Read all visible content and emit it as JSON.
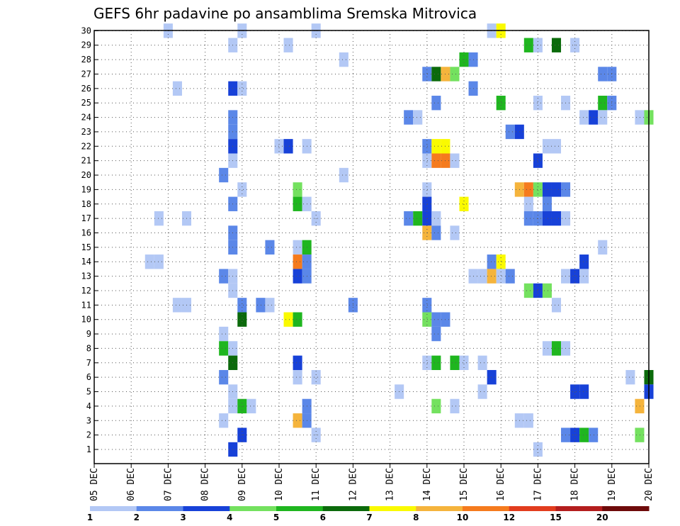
{
  "chart_data": {
    "type": "heatmap",
    "title": "GEFS 6hr padavine po ansamblima Sremska Mitrovica",
    "x_ticks": [
      "05 DEC",
      "06 DEC",
      "07 DEC",
      "08 DEC",
      "09 DEC",
      "10 DEC",
      "11 DEC",
      "12 DEC",
      "13 DEC",
      "14 DEC",
      "15 DEC",
      "16 DEC",
      "17 DEC",
      "18 DEC",
      "19 DEC",
      "20 DEC"
    ],
    "y_ticks": [
      "1",
      "2",
      "3",
      "4",
      "5",
      "6",
      "7",
      "8",
      "9",
      "10",
      "11",
      "12",
      "13",
      "14",
      "15",
      "16",
      "17",
      "18",
      "19",
      "20",
      "21",
      "22",
      "23",
      "24",
      "25",
      "26",
      "27",
      "28",
      "29",
      "30"
    ],
    "x_unit": "6h steps from 05 DEC 00Z",
    "grid": true,
    "legend": {
      "labels": [
        "1",
        "2",
        "3",
        "4",
        "5",
        "6",
        "7",
        "8",
        "10",
        "12",
        "15",
        "20"
      ],
      "colors": [
        "#b3c8f5",
        "#5b87e8",
        "#1741d8",
        "#74e15f",
        "#1fb61f",
        "#0b6a0b",
        "#fafa00",
        "#f5b43c",
        "#f57b1e",
        "#e23c1e",
        "#b41e1e",
        "#6e0a0a"
      ]
    },
    "cells": [
      {
        "m": 30,
        "t": 24,
        "c": 1
      },
      {
        "m": 30,
        "t": 16,
        "c": 1
      },
      {
        "m": 30,
        "t": 8,
        "c": 1
      },
      {
        "m": 30,
        "t": 43,
        "c": 1
      },
      {
        "m": 30,
        "t": 44,
        "c": 7
      },
      {
        "m": 29,
        "t": 15,
        "c": 1
      },
      {
        "m": 29,
        "t": 21,
        "c": 1
      },
      {
        "m": 29,
        "t": 47,
        "c": 5
      },
      {
        "m": 29,
        "t": 48,
        "c": 1
      },
      {
        "m": 29,
        "t": 50,
        "c": 6
      },
      {
        "m": 29,
        "t": 52,
        "c": 1
      },
      {
        "m": 28,
        "t": 27,
        "c": 1
      },
      {
        "m": 28,
        "t": 40,
        "c": 5
      },
      {
        "m": 28,
        "t": 41,
        "c": 2
      },
      {
        "m": 27,
        "t": 36,
        "c": 2
      },
      {
        "m": 27,
        "t": 37,
        "c": 6
      },
      {
        "m": 27,
        "t": 38,
        "c": 8
      },
      {
        "m": 27,
        "t": 39,
        "c": 4
      },
      {
        "m": 27,
        "t": 55,
        "c": 2
      },
      {
        "m": 27,
        "t": 56,
        "c": 2
      },
      {
        "m": 26,
        "t": 9,
        "c": 1
      },
      {
        "m": 26,
        "t": 15,
        "c": 3
      },
      {
        "m": 26,
        "t": 16,
        "c": 1
      },
      {
        "m": 26,
        "t": 41,
        "c": 2
      },
      {
        "m": 25,
        "t": 37,
        "c": 2
      },
      {
        "m": 25,
        "t": 44,
        "c": 5
      },
      {
        "m": 25,
        "t": 48,
        "c": 1
      },
      {
        "m": 25,
        "t": 51,
        "c": 1
      },
      {
        "m": 25,
        "t": 55,
        "c": 5
      },
      {
        "m": 25,
        "t": 56,
        "c": 2
      },
      {
        "m": 24,
        "t": 15,
        "c": 2
      },
      {
        "m": 24,
        "t": 34,
        "c": 2
      },
      {
        "m": 24,
        "t": 35,
        "c": 1
      },
      {
        "m": 24,
        "t": 53,
        "c": 1
      },
      {
        "m": 24,
        "t": 54,
        "c": 3
      },
      {
        "m": 24,
        "t": 55,
        "c": 1
      },
      {
        "m": 24,
        "t": 59,
        "c": 1
      },
      {
        "m": 24,
        "t": 60,
        "c": 4
      },
      {
        "m": 23,
        "t": 15,
        "c": 2
      },
      {
        "m": 23,
        "t": 45,
        "c": 2
      },
      {
        "m": 23,
        "t": 46,
        "c": 3
      },
      {
        "m": 22,
        "t": 15,
        "c": 3
      },
      {
        "m": 22,
        "t": 20,
        "c": 1
      },
      {
        "m": 22,
        "t": 21,
        "c": 3
      },
      {
        "m": 22,
        "t": 23,
        "c": 1
      },
      {
        "m": 22,
        "t": 36,
        "c": 2
      },
      {
        "m": 22,
        "t": 37,
        "c": 7
      },
      {
        "m": 22,
        "t": 38,
        "c": 7
      },
      {
        "m": 22,
        "t": 49,
        "c": 1
      },
      {
        "m": 22,
        "t": 50,
        "c": 1
      },
      {
        "m": 21,
        "t": 15,
        "c": 1
      },
      {
        "m": 21,
        "t": 36,
        "c": 1
      },
      {
        "m": 21,
        "t": 37,
        "c": 9
      },
      {
        "m": 21,
        "t": 38,
        "c": 9
      },
      {
        "m": 21,
        "t": 39,
        "c": 1
      },
      {
        "m": 21,
        "t": 48,
        "c": 3
      },
      {
        "m": 20,
        "t": 14,
        "c": 2
      },
      {
        "m": 20,
        "t": 27,
        "c": 1
      },
      {
        "m": 19,
        "t": 16,
        "c": 1
      },
      {
        "m": 19,
        "t": 22,
        "c": 4
      },
      {
        "m": 19,
        "t": 36,
        "c": 1
      },
      {
        "m": 19,
        "t": 46,
        "c": 8
      },
      {
        "m": 19,
        "t": 47,
        "c": 9
      },
      {
        "m": 19,
        "t": 48,
        "c": 4
      },
      {
        "m": 19,
        "t": 49,
        "c": 3
      },
      {
        "m": 19,
        "t": 50,
        "c": 3
      },
      {
        "m": 19,
        "t": 51,
        "c": 2
      },
      {
        "m": 18,
        "t": 15,
        "c": 2
      },
      {
        "m": 18,
        "t": 22,
        "c": 5
      },
      {
        "m": 18,
        "t": 23,
        "c": 1
      },
      {
        "m": 18,
        "t": 36,
        "c": 3
      },
      {
        "m": 18,
        "t": 40,
        "c": 7
      },
      {
        "m": 18,
        "t": 47,
        "c": 1
      },
      {
        "m": 18,
        "t": 49,
        "c": 2
      },
      {
        "m": 17,
        "t": 7,
        "c": 1
      },
      {
        "m": 17,
        "t": 10,
        "c": 1
      },
      {
        "m": 17,
        "t": 24,
        "c": 1
      },
      {
        "m": 17,
        "t": 34,
        "c": 2
      },
      {
        "m": 17,
        "t": 35,
        "c": 5
      },
      {
        "m": 17,
        "t": 36,
        "c": 3
      },
      {
        "m": 17,
        "t": 37,
        "c": 1
      },
      {
        "m": 17,
        "t": 47,
        "c": 2
      },
      {
        "m": 17,
        "t": 48,
        "c": 2
      },
      {
        "m": 17,
        "t": 49,
        "c": 3
      },
      {
        "m": 17,
        "t": 50,
        "c": 3
      },
      {
        "m": 17,
        "t": 51,
        "c": 1
      },
      {
        "m": 16,
        "t": 15,
        "c": 2
      },
      {
        "m": 16,
        "t": 36,
        "c": 8
      },
      {
        "m": 16,
        "t": 37,
        "c": 2
      },
      {
        "m": 16,
        "t": 39,
        "c": 1
      },
      {
        "m": 15,
        "t": 15,
        "c": 2
      },
      {
        "m": 15,
        "t": 19,
        "c": 2
      },
      {
        "m": 15,
        "t": 22,
        "c": 1
      },
      {
        "m": 15,
        "t": 23,
        "c": 5
      },
      {
        "m": 15,
        "t": 55,
        "c": 1
      },
      {
        "m": 14,
        "t": 6,
        "c": 1
      },
      {
        "m": 14,
        "t": 7,
        "c": 1
      },
      {
        "m": 14,
        "t": 22,
        "c": 9
      },
      {
        "m": 14,
        "t": 23,
        "c": 2
      },
      {
        "m": 14,
        "t": 43,
        "c": 2
      },
      {
        "m": 14,
        "t": 44,
        "c": 7
      },
      {
        "m": 14,
        "t": 53,
        "c": 3
      },
      {
        "m": 13,
        "t": 14,
        "c": 2
      },
      {
        "m": 13,
        "t": 15,
        "c": 1
      },
      {
        "m": 13,
        "t": 22,
        "c": 3
      },
      {
        "m": 13,
        "t": 23,
        "c": 2
      },
      {
        "m": 13,
        "t": 41,
        "c": 1
      },
      {
        "m": 13,
        "t": 42,
        "c": 1
      },
      {
        "m": 13,
        "t": 43,
        "c": 8
      },
      {
        "m": 13,
        "t": 44,
        "c": 1
      },
      {
        "m": 13,
        "t": 45,
        "c": 2
      },
      {
        "m": 13,
        "t": 51,
        "c": 1
      },
      {
        "m": 13,
        "t": 52,
        "c": 3
      },
      {
        "m": 13,
        "t": 53,
        "c": 1
      },
      {
        "m": 12,
        "t": 15,
        "c": 1
      },
      {
        "m": 12,
        "t": 47,
        "c": 4
      },
      {
        "m": 12,
        "t": 48,
        "c": 3
      },
      {
        "m": 12,
        "t": 49,
        "c": 4
      },
      {
        "m": 11,
        "t": 9,
        "c": 1
      },
      {
        "m": 11,
        "t": 10,
        "c": 1
      },
      {
        "m": 11,
        "t": 16,
        "c": 2
      },
      {
        "m": 11,
        "t": 18,
        "c": 2
      },
      {
        "m": 11,
        "t": 19,
        "c": 1
      },
      {
        "m": 11,
        "t": 28,
        "c": 2
      },
      {
        "m": 11,
        "t": 36,
        "c": 2
      },
      {
        "m": 11,
        "t": 50,
        "c": 1
      },
      {
        "m": 10,
        "t": 16,
        "c": 6
      },
      {
        "m": 10,
        "t": 21,
        "c": 7
      },
      {
        "m": 10,
        "t": 22,
        "c": 5
      },
      {
        "m": 10,
        "t": 36,
        "c": 4
      },
      {
        "m": 10,
        "t": 37,
        "c": 2
      },
      {
        "m": 10,
        "t": 38,
        "c": 2
      },
      {
        "m": 9,
        "t": 14,
        "c": 1
      },
      {
        "m": 9,
        "t": 37,
        "c": 2
      },
      {
        "m": 8,
        "t": 14,
        "c": 5
      },
      {
        "m": 8,
        "t": 15,
        "c": 1
      },
      {
        "m": 8,
        "t": 49,
        "c": 1
      },
      {
        "m": 8,
        "t": 50,
        "c": 5
      },
      {
        "m": 8,
        "t": 51,
        "c": 1
      },
      {
        "m": 7,
        "t": 15,
        "c": 6
      },
      {
        "m": 7,
        "t": 22,
        "c": 3
      },
      {
        "m": 7,
        "t": 36,
        "c": 1
      },
      {
        "m": 7,
        "t": 37,
        "c": 5
      },
      {
        "m": 7,
        "t": 39,
        "c": 5
      },
      {
        "m": 7,
        "t": 40,
        "c": 1
      },
      {
        "m": 7,
        "t": 42,
        "c": 1
      },
      {
        "m": 6,
        "t": 14,
        "c": 2
      },
      {
        "m": 6,
        "t": 22,
        "c": 1
      },
      {
        "m": 6,
        "t": 24,
        "c": 1
      },
      {
        "m": 6,
        "t": 43,
        "c": 3
      },
      {
        "m": 6,
        "t": 58,
        "c": 1
      },
      {
        "m": 6,
        "t": 60,
        "c": 6
      },
      {
        "m": 5,
        "t": 15,
        "c": 1
      },
      {
        "m": 5,
        "t": 33,
        "c": 1
      },
      {
        "m": 5,
        "t": 42,
        "c": 1
      },
      {
        "m": 5,
        "t": 52,
        "c": 3
      },
      {
        "m": 5,
        "t": 53,
        "c": 3
      },
      {
        "m": 5,
        "t": 60,
        "c": 3
      },
      {
        "m": 4,
        "t": 15,
        "c": 1
      },
      {
        "m": 4,
        "t": 16,
        "c": 5
      },
      {
        "m": 4,
        "t": 17,
        "c": 1
      },
      {
        "m": 4,
        "t": 23,
        "c": 2
      },
      {
        "m": 4,
        "t": 37,
        "c": 4
      },
      {
        "m": 4,
        "t": 39,
        "c": 1
      },
      {
        "m": 4,
        "t": 59,
        "c": 8
      },
      {
        "m": 3,
        "t": 14,
        "c": 1
      },
      {
        "m": 3,
        "t": 22,
        "c": 8
      },
      {
        "m": 3,
        "t": 23,
        "c": 2
      },
      {
        "m": 3,
        "t": 46,
        "c": 1
      },
      {
        "m": 3,
        "t": 47,
        "c": 1
      },
      {
        "m": 2,
        "t": 16,
        "c": 3
      },
      {
        "m": 2,
        "t": 24,
        "c": 1
      },
      {
        "m": 2,
        "t": 51,
        "c": 2
      },
      {
        "m": 2,
        "t": 52,
        "c": 3
      },
      {
        "m": 2,
        "t": 53,
        "c": 5
      },
      {
        "m": 2,
        "t": 54,
        "c": 2
      },
      {
        "m": 2,
        "t": 59,
        "c": 4
      },
      {
        "m": 1,
        "t": 15,
        "c": 3
      },
      {
        "m": 1,
        "t": 48,
        "c": 1
      }
    ]
  }
}
